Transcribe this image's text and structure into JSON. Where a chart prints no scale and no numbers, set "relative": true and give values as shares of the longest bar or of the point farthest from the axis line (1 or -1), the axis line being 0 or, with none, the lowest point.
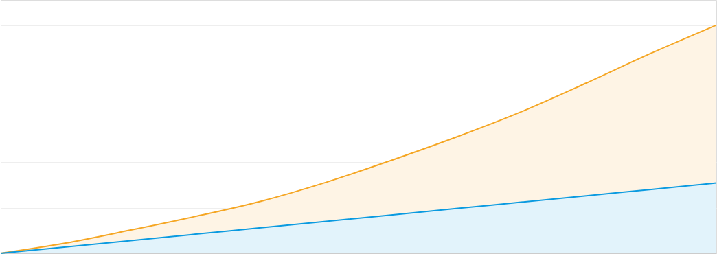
{
  "chart_data": {
    "type": "area",
    "relative": true,
    "grid": "y",
    "categories": [
      null,
      null,
      null,
      null,
      null,
      null,
      null,
      null,
      null,
      null,
      null,
      null
    ],
    "series": [
      {
        "color": "#f5a623",
        "values": [
          0,
          0.045,
          0.102,
          0.162,
          0.228,
          0.311,
          0.407,
          0.509,
          0.62,
          0.746,
          0.877,
          1
        ]
      },
      {
        "color": "#0a9ae0",
        "values": [
          0,
          0.028,
          0.056,
          0.084,
          0.112,
          0.14,
          0.168,
          0.196,
          0.224,
          0.252,
          0.28,
          0.308
        ]
      }
    ]
  }
}
